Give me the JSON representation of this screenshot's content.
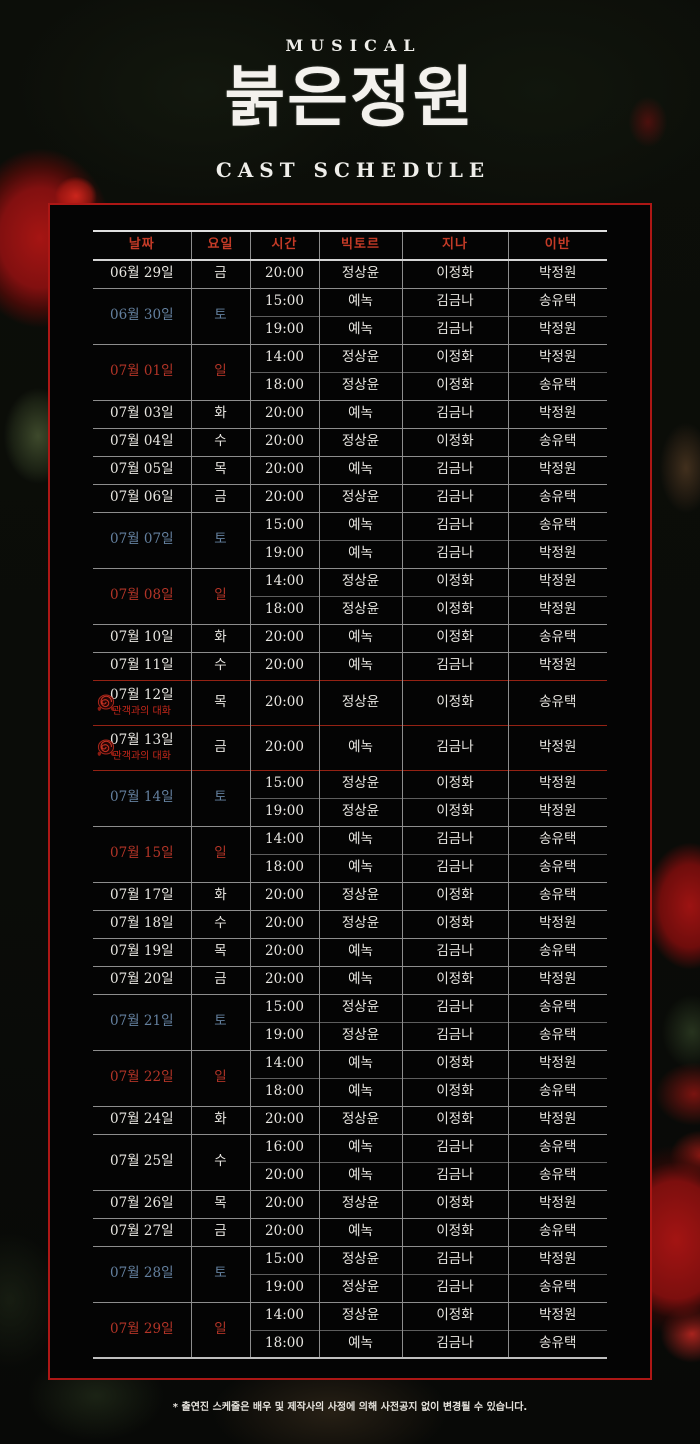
{
  "header": {
    "kicker": "MUSICAL",
    "title": "붉은정원",
    "subtitle": "CAST SCHEDULE"
  },
  "colors": {
    "frame_red": "#ad1715",
    "header_text_red": "#c43b27",
    "saturday_blue": "#64809f",
    "sunday_red": "#b23427",
    "special_label_red": "#c6281b",
    "special_divider_red": "#942214",
    "body_text": "#e8e6e1"
  },
  "table": {
    "columns": [
      "날짜",
      "요일",
      "시간",
      "빅토르",
      "지나",
      "이반"
    ],
    "groups": [
      {
        "date": "06월 29일",
        "day": "금",
        "type": "weekday",
        "shows": [
          {
            "time": "20:00",
            "viktor": "정상윤",
            "zina": "이정화",
            "ivan": "박정원"
          }
        ]
      },
      {
        "date": "06월 30일",
        "day": "토",
        "type": "sat",
        "shows": [
          {
            "time": "15:00",
            "viktor": "예녹",
            "zina": "김금나",
            "ivan": "송유택"
          },
          {
            "time": "19:00",
            "viktor": "예녹",
            "zina": "김금나",
            "ivan": "박정원"
          }
        ]
      },
      {
        "date": "07월 01일",
        "day": "일",
        "type": "sun",
        "shows": [
          {
            "time": "14:00",
            "viktor": "정상윤",
            "zina": "이정화",
            "ivan": "박정원"
          },
          {
            "time": "18:00",
            "viktor": "정상윤",
            "zina": "이정화",
            "ivan": "송유택"
          }
        ]
      },
      {
        "date": "07월 03일",
        "day": "화",
        "type": "weekday",
        "shows": [
          {
            "time": "20:00",
            "viktor": "예녹",
            "zina": "김금나",
            "ivan": "박정원"
          }
        ]
      },
      {
        "date": "07월 04일",
        "day": "수",
        "type": "weekday",
        "shows": [
          {
            "time": "20:00",
            "viktor": "정상윤",
            "zina": "이정화",
            "ivan": "송유택"
          }
        ]
      },
      {
        "date": "07월 05일",
        "day": "목",
        "type": "weekday",
        "shows": [
          {
            "time": "20:00",
            "viktor": "예녹",
            "zina": "김금나",
            "ivan": "박정원"
          }
        ]
      },
      {
        "date": "07월 06일",
        "day": "금",
        "type": "weekday",
        "shows": [
          {
            "time": "20:00",
            "viktor": "정상윤",
            "zina": "김금나",
            "ivan": "송유택"
          }
        ]
      },
      {
        "date": "07월 07일",
        "day": "토",
        "type": "sat",
        "shows": [
          {
            "time": "15:00",
            "viktor": "예녹",
            "zina": "김금나",
            "ivan": "송유택"
          },
          {
            "time": "19:00",
            "viktor": "예녹",
            "zina": "김금나",
            "ivan": "박정원"
          }
        ]
      },
      {
        "date": "07월 08일",
        "day": "일",
        "type": "sun",
        "shows": [
          {
            "time": "14:00",
            "viktor": "정상윤",
            "zina": "이정화",
            "ivan": "박정원"
          },
          {
            "time": "18:00",
            "viktor": "정상윤",
            "zina": "이정화",
            "ivan": "박정원"
          }
        ]
      },
      {
        "date": "07월 10일",
        "day": "화",
        "type": "weekday",
        "shows": [
          {
            "time": "20:00",
            "viktor": "예녹",
            "zina": "이정화",
            "ivan": "송유택"
          }
        ]
      },
      {
        "date": "07월 11일",
        "day": "수",
        "type": "weekday",
        "shows": [
          {
            "time": "20:00",
            "viktor": "예녹",
            "zina": "김금나",
            "ivan": "박정원"
          }
        ]
      },
      {
        "date": "07월 12일",
        "day": "목",
        "type": "weekday",
        "special": true,
        "special_label": "관객과의 대화",
        "shows": [
          {
            "time": "20:00",
            "viktor": "정상윤",
            "zina": "이정화",
            "ivan": "송유택"
          }
        ]
      },
      {
        "date": "07월 13일",
        "day": "금",
        "type": "weekday",
        "special": true,
        "special_label": "관객과의 대화",
        "shows": [
          {
            "time": "20:00",
            "viktor": "예녹",
            "zina": "김금나",
            "ivan": "박정원"
          }
        ]
      },
      {
        "date": "07월 14일",
        "day": "토",
        "type": "sat",
        "shows": [
          {
            "time": "15:00",
            "viktor": "정상윤",
            "zina": "이정화",
            "ivan": "박정원"
          },
          {
            "time": "19:00",
            "viktor": "정상윤",
            "zina": "이정화",
            "ivan": "박정원"
          }
        ]
      },
      {
        "date": "07월 15일",
        "day": "일",
        "type": "sun",
        "shows": [
          {
            "time": "14:00",
            "viktor": "예녹",
            "zina": "김금나",
            "ivan": "송유택"
          },
          {
            "time": "18:00",
            "viktor": "예녹",
            "zina": "김금나",
            "ivan": "송유택"
          }
        ]
      },
      {
        "date": "07월 17일",
        "day": "화",
        "type": "weekday",
        "shows": [
          {
            "time": "20:00",
            "viktor": "정상윤",
            "zina": "이정화",
            "ivan": "송유택"
          }
        ]
      },
      {
        "date": "07월 18일",
        "day": "수",
        "type": "weekday",
        "shows": [
          {
            "time": "20:00",
            "viktor": "정상윤",
            "zina": "이정화",
            "ivan": "박정원"
          }
        ]
      },
      {
        "date": "07월 19일",
        "day": "목",
        "type": "weekday",
        "shows": [
          {
            "time": "20:00",
            "viktor": "예녹",
            "zina": "김금나",
            "ivan": "송유택"
          }
        ]
      },
      {
        "date": "07월 20일",
        "day": "금",
        "type": "weekday",
        "shows": [
          {
            "time": "20:00",
            "viktor": "예녹",
            "zina": "이정화",
            "ivan": "박정원"
          }
        ]
      },
      {
        "date": "07월 21일",
        "day": "토",
        "type": "sat",
        "shows": [
          {
            "time": "15:00",
            "viktor": "정상윤",
            "zina": "김금나",
            "ivan": "송유택"
          },
          {
            "time": "19:00",
            "viktor": "정상윤",
            "zina": "김금나",
            "ivan": "송유택"
          }
        ]
      },
      {
        "date": "07월 22일",
        "day": "일",
        "type": "sun",
        "shows": [
          {
            "time": "14:00",
            "viktor": "예녹",
            "zina": "이정화",
            "ivan": "박정원"
          },
          {
            "time": "18:00",
            "viktor": "예녹",
            "zina": "이정화",
            "ivan": "송유택"
          }
        ]
      },
      {
        "date": "07월 24일",
        "day": "화",
        "type": "weekday",
        "shows": [
          {
            "time": "20:00",
            "viktor": "정상윤",
            "zina": "이정화",
            "ivan": "박정원"
          }
        ]
      },
      {
        "date": "07월 25일",
        "day": "수",
        "type": "weekday",
        "shows": [
          {
            "time": "16:00",
            "viktor": "예녹",
            "zina": "김금나",
            "ivan": "송유택"
          },
          {
            "time": "20:00",
            "viktor": "예녹",
            "zina": "김금나",
            "ivan": "송유택"
          }
        ]
      },
      {
        "date": "07월 26일",
        "day": "목",
        "type": "weekday",
        "shows": [
          {
            "time": "20:00",
            "viktor": "정상윤",
            "zina": "이정화",
            "ivan": "박정원"
          }
        ]
      },
      {
        "date": "07월 27일",
        "day": "금",
        "type": "weekday",
        "shows": [
          {
            "time": "20:00",
            "viktor": "예녹",
            "zina": "이정화",
            "ivan": "송유택"
          }
        ]
      },
      {
        "date": "07월 28일",
        "day": "토",
        "type": "sat",
        "shows": [
          {
            "time": "15:00",
            "viktor": "정상윤",
            "zina": "김금나",
            "ivan": "박정원"
          },
          {
            "time": "19:00",
            "viktor": "정상윤",
            "zina": "김금나",
            "ivan": "송유택"
          }
        ]
      },
      {
        "date": "07월 29일",
        "day": "일",
        "type": "sun",
        "shows": [
          {
            "time": "14:00",
            "viktor": "정상윤",
            "zina": "이정화",
            "ivan": "박정원"
          },
          {
            "time": "18:00",
            "viktor": "예녹",
            "zina": "김금나",
            "ivan": "송유택"
          }
        ]
      }
    ]
  },
  "footer": {
    "note": "* 출연진 스케줄은 배우 및 제작사의 사정에 의해 사전공지 없이 변경될 수 있습니다."
  }
}
